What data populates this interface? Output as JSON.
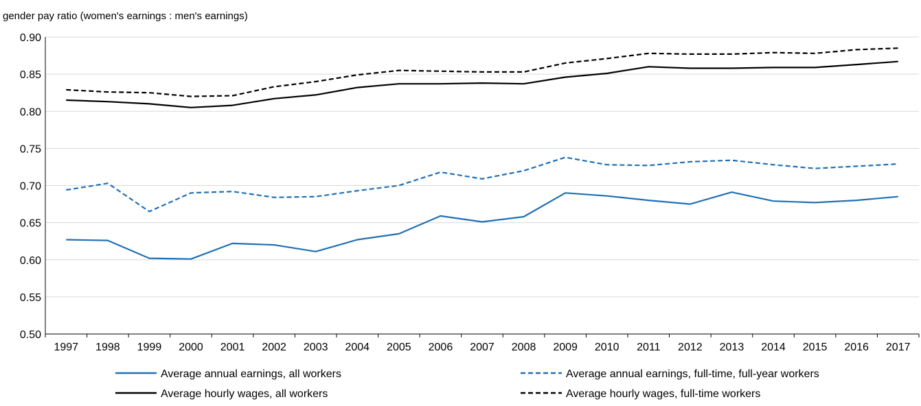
{
  "chart_data": {
    "type": "line",
    "ylabel": "gender pay ratio (women's earnings : men's earnings)",
    "xlabel": "",
    "title": "",
    "categories": [
      "1997",
      "1998",
      "1999",
      "2000",
      "2001",
      "2002",
      "2003",
      "2004",
      "2005",
      "2006",
      "2007",
      "2008",
      "2009",
      "2010",
      "2011",
      "2012",
      "2013",
      "2014",
      "2015",
      "2016",
      "2017"
    ],
    "ylim": [
      0.5,
      0.9
    ],
    "yticks": [
      "0.50",
      "0.55",
      "0.60",
      "0.65",
      "0.70",
      "0.75",
      "0.80",
      "0.85",
      "0.90"
    ],
    "grid": true,
    "legend_position": "bottom",
    "series": [
      {
        "name": "Average annual earnings, all workers",
        "color": "#1f6fb5",
        "dash": "solid",
        "values": [
          0.627,
          0.626,
          0.602,
          0.601,
          0.622,
          0.62,
          0.611,
          0.627,
          0.635,
          0.659,
          0.651,
          0.658,
          0.69,
          0.686,
          0.68,
          0.675,
          0.691,
          0.679,
          0.677,
          0.68,
          0.685
        ]
      },
      {
        "name": "Average annual earnings, full-time, full-year workers",
        "color": "#1f6fb5",
        "dash": "dashed",
        "values": [
          0.694,
          0.703,
          0.665,
          0.69,
          0.692,
          0.684,
          0.685,
          0.693,
          0.7,
          0.718,
          0.709,
          0.72,
          0.738,
          0.728,
          0.727,
          0.732,
          0.734,
          0.728,
          0.723,
          0.726,
          0.729
        ]
      },
      {
        "name": "Average hourly wages, all workers",
        "color": "#000000",
        "dash": "solid",
        "values": [
          0.815,
          0.813,
          0.81,
          0.805,
          0.808,
          0.817,
          0.822,
          0.832,
          0.837,
          0.837,
          0.838,
          0.837,
          0.846,
          0.851,
          0.86,
          0.858,
          0.858,
          0.859,
          0.859,
          0.863,
          0.867
        ]
      },
      {
        "name": "Average hourly wages, full-time workers",
        "color": "#000000",
        "dash": "dashed",
        "values": [
          0.829,
          0.826,
          0.825,
          0.82,
          0.821,
          0.833,
          0.84,
          0.849,
          0.855,
          0.854,
          0.853,
          0.853,
          0.865,
          0.871,
          0.878,
          0.877,
          0.877,
          0.879,
          0.878,
          0.883,
          0.885
        ]
      }
    ]
  }
}
